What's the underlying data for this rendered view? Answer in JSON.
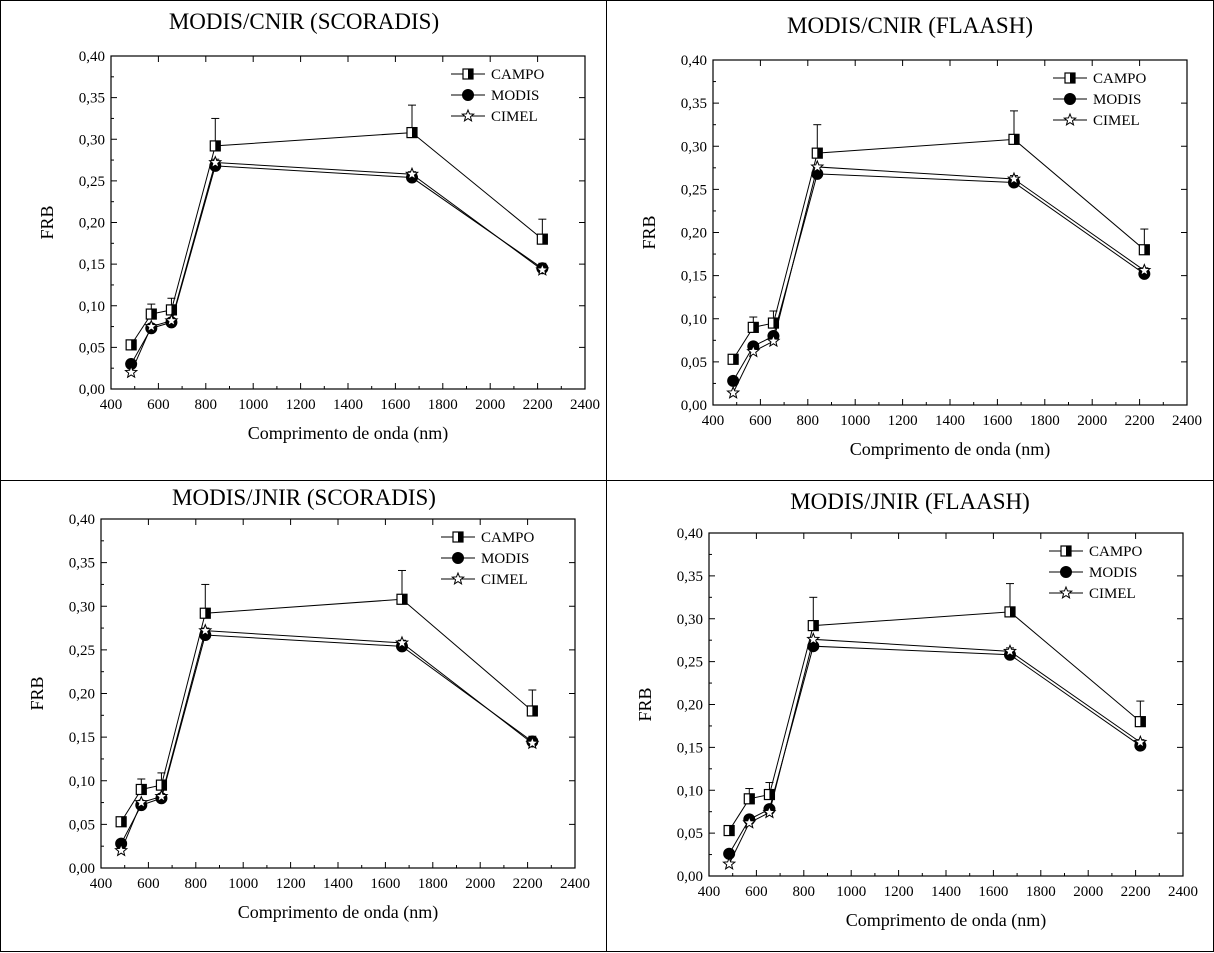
{
  "chart_data": [
    {
      "type": "line",
      "title": "MODIS/CNIR (SCORADIS)",
      "xlabel": "Comprimento de onda (nm)",
      "ylabel": "FRB",
      "xlim": [
        400,
        2400
      ],
      "ylim": [
        0,
        0.4
      ],
      "x_ticks": [
        "400",
        "600",
        "800",
        "1000",
        "1200",
        "1400",
        "1600",
        "1800",
        "2000",
        "2200",
        "2400"
      ],
      "y_ticks": [
        "0,00",
        "0,05",
        "0,10",
        "0,15",
        "0,20",
        "0,25",
        "0,30",
        "0,35",
        "0,40"
      ],
      "legend_position": "top-right",
      "x": [
        485,
        570,
        655,
        840,
        1670,
        2220
      ],
      "series": [
        {
          "name": "CAMPO",
          "marker": "half-square",
          "values": [
            0.053,
            0.09,
            0.095,
            0.292,
            0.308,
            0.18
          ],
          "error": [
            0,
            0.012,
            0.014,
            0.033,
            0.033,
            0.024
          ]
        },
        {
          "name": "MODIS",
          "marker": "circle",
          "values": [
            0.03,
            0.073,
            0.08,
            0.268,
            0.254,
            0.145
          ],
          "error": [
            0,
            0,
            0,
            0.008,
            0.007,
            0.006
          ]
        },
        {
          "name": "CIMEL",
          "marker": "star",
          "values": [
            0.02,
            0.075,
            0.082,
            0.272,
            0.258,
            0.143
          ],
          "error": [
            0,
            0,
            0,
            0,
            0,
            0
          ]
        }
      ]
    },
    {
      "type": "line",
      "title": "MODIS/CNIR (FLAASH)",
      "xlabel": "Comprimento de onda (nm)",
      "ylabel": "FRB",
      "xlim": [
        400,
        2400
      ],
      "ylim": [
        0,
        0.4
      ],
      "x_ticks": [
        "400",
        "600",
        "800",
        "1000",
        "1200",
        "1400",
        "1600",
        "1800",
        "2000",
        "2200",
        "2400"
      ],
      "y_ticks": [
        "0,00",
        "0,05",
        "0,10",
        "0,15",
        "0,20",
        "0,25",
        "0,30",
        "0,35",
        "0,40"
      ],
      "legend_position": "top-right",
      "x": [
        485,
        570,
        655,
        840,
        1670,
        2220
      ],
      "series": [
        {
          "name": "CAMPO",
          "marker": "half-square",
          "values": [
            0.053,
            0.09,
            0.095,
            0.292,
            0.308,
            0.18
          ],
          "error": [
            0,
            0.012,
            0.014,
            0.033,
            0.033,
            0.024
          ]
        },
        {
          "name": "MODIS",
          "marker": "circle",
          "values": [
            0.028,
            0.068,
            0.08,
            0.268,
            0.258,
            0.152
          ],
          "error": [
            0,
            0,
            0,
            0.008,
            0.008,
            0.007
          ]
        },
        {
          "name": "CIMEL",
          "marker": "star",
          "values": [
            0.014,
            0.062,
            0.074,
            0.276,
            0.262,
            0.156
          ],
          "error": [
            0,
            0,
            0,
            0,
            0,
            0
          ]
        }
      ]
    },
    {
      "type": "line",
      "title": "MODIS/JNIR (SCORADIS)",
      "xlabel": "Comprimento de onda (nm)",
      "ylabel": "FRB",
      "xlim": [
        400,
        2400
      ],
      "ylim": [
        0,
        0.4
      ],
      "x_ticks": [
        "400",
        "600",
        "800",
        "1000",
        "1200",
        "1400",
        "1600",
        "1800",
        "2000",
        "2200",
        "2400"
      ],
      "y_ticks": [
        "0,00",
        "0,05",
        "0,10",
        "0,15",
        "0,20",
        "0,25",
        "0,30",
        "0,35",
        "0,40"
      ],
      "legend_position": "top-right",
      "x": [
        485,
        570,
        655,
        840,
        1670,
        2220
      ],
      "series": [
        {
          "name": "CAMPO",
          "marker": "half-square",
          "values": [
            0.053,
            0.09,
            0.095,
            0.292,
            0.308,
            0.18
          ],
          "error": [
            0,
            0.012,
            0.014,
            0.033,
            0.033,
            0.024
          ]
        },
        {
          "name": "MODIS",
          "marker": "circle",
          "values": [
            0.028,
            0.072,
            0.08,
            0.267,
            0.254,
            0.145
          ],
          "error": [
            0,
            0,
            0,
            0.008,
            0.007,
            0.006
          ]
        },
        {
          "name": "CIMEL",
          "marker": "star",
          "values": [
            0.02,
            0.075,
            0.082,
            0.272,
            0.258,
            0.143
          ],
          "error": [
            0,
            0,
            0,
            0,
            0,
            0
          ]
        }
      ]
    },
    {
      "type": "line",
      "title": "MODIS/JNIR (FLAASH)",
      "xlabel": "Comprimento de onda (nm)",
      "ylabel": "FRB",
      "xlim": [
        400,
        2400
      ],
      "ylim": [
        0,
        0.4
      ],
      "x_ticks": [
        "400",
        "600",
        "800",
        "1000",
        "1200",
        "1400",
        "1600",
        "1800",
        "2000",
        "2200",
        "2400"
      ],
      "y_ticks": [
        "0,00",
        "0,05",
        "0,10",
        "0,15",
        "0,20",
        "0,25",
        "0,30",
        "0,35",
        "0,40"
      ],
      "legend_position": "top-right",
      "x": [
        485,
        570,
        655,
        840,
        1670,
        2220
      ],
      "series": [
        {
          "name": "CAMPO",
          "marker": "half-square",
          "values": [
            0.053,
            0.09,
            0.095,
            0.292,
            0.308,
            0.18
          ],
          "error": [
            0,
            0.012,
            0.014,
            0.033,
            0.033,
            0.024
          ]
        },
        {
          "name": "MODIS",
          "marker": "circle",
          "values": [
            0.026,
            0.066,
            0.078,
            0.268,
            0.258,
            0.152
          ],
          "error": [
            0,
            0,
            0,
            0.008,
            0.008,
            0.007
          ]
        },
        {
          "name": "CIMEL",
          "marker": "star",
          "values": [
            0.014,
            0.062,
            0.074,
            0.276,
            0.262,
            0.156
          ],
          "error": [
            0,
            0,
            0,
            0,
            0,
            0
          ]
        }
      ]
    }
  ]
}
